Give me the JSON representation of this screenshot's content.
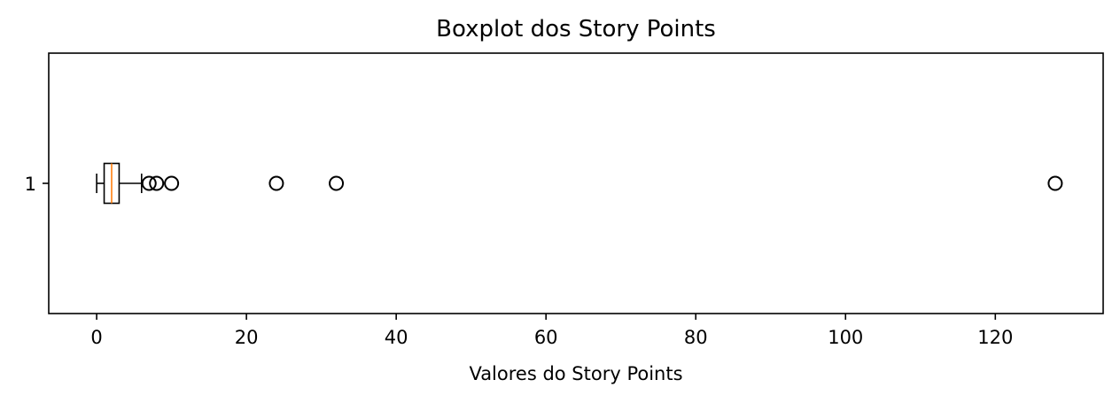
{
  "chart_data": {
    "type": "boxplot",
    "orientation": "horizontal",
    "title": "Boxplot dos Story Points",
    "xlabel": "Valores do Story Points",
    "ylabel": "",
    "xlim": [
      -6.4,
      134.4
    ],
    "x_ticks": [
      0,
      20,
      40,
      60,
      80,
      100,
      120
    ],
    "y_ticks": [
      "1"
    ],
    "grid": false,
    "legend": "none",
    "series": [
      {
        "category": "1",
        "whisker_low": 0,
        "q1": 1,
        "median": 2,
        "q3": 3,
        "whisker_high": 6,
        "outliers": [
          7,
          8,
          10,
          24,
          32,
          128
        ]
      }
    ],
    "colors": {
      "box": "#000000",
      "median": "#ff7f0e",
      "outlier_edge": "#000000"
    }
  }
}
